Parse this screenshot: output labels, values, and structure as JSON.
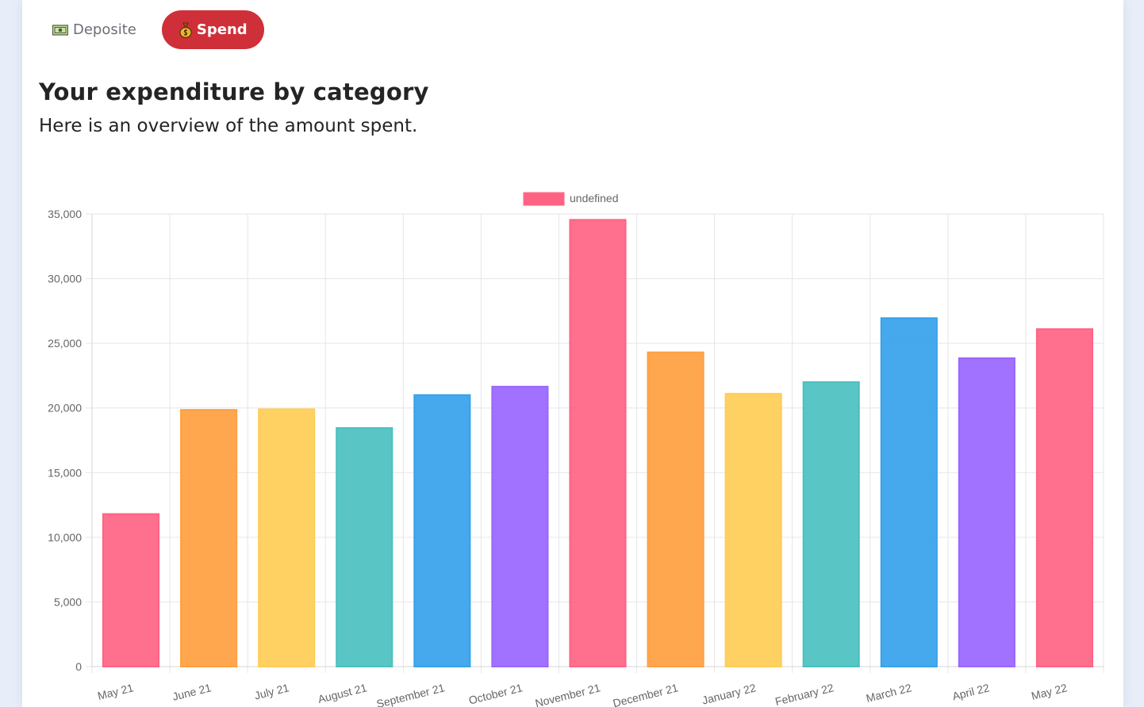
{
  "tabs": [
    {
      "label": "Deposite",
      "icon": "money-icon",
      "active": false
    },
    {
      "label": "Spend",
      "icon": "money-bag-icon",
      "active": true
    }
  ],
  "header": {
    "title": "Your expenditure by category",
    "subtitle": "Here is an overview of the amount spent."
  },
  "colors": {
    "active_tab": "#cf2f38",
    "palette": [
      "#ff6384",
      "#ff9f40",
      "#ffcd56",
      "#4bc0c0",
      "#36a2eb",
      "#9966ff"
    ]
  },
  "chart_data": {
    "type": "bar",
    "categories": [
      "May 21",
      "June 21",
      "July 21",
      "August 21",
      "September 21",
      "October 21",
      "November 21",
      "December 21",
      "January 22",
      "February 22",
      "March 22",
      "April 22",
      "May 22"
    ],
    "series": [
      {
        "name": "undefined",
        "values": [
          11800,
          19850,
          19900,
          18450,
          21000,
          21650,
          34550,
          24300,
          21100,
          22000,
          26950,
          23850,
          26100
        ]
      }
    ],
    "ylim": [
      0,
      35000
    ],
    "yticks": [
      0,
      5000,
      10000,
      15000,
      20000,
      25000,
      30000,
      35000
    ],
    "ytick_labels": [
      "0",
      "5,000",
      "10,000",
      "15,000",
      "20,000",
      "25,000",
      "30,000",
      "35,000"
    ],
    "legend": "top-center",
    "grid": true
  }
}
